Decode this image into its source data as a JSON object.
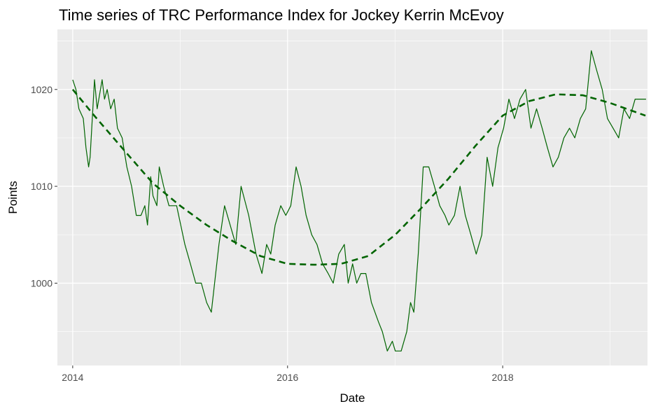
{
  "chart_data": {
    "type": "line",
    "title": "Time series of TRC Performance Index for Jockey Kerrin McEvoy",
    "xlabel": "Date",
    "ylabel": "Points",
    "xlim": [
      "2013-11-10",
      "2019-05-08"
    ],
    "ylim": [
      991.5,
      1026.2
    ],
    "x_ticks": [
      {
        "label": "2014",
        "value": "2014-01-01"
      },
      {
        "label": "2016",
        "value": "2016-01-01"
      },
      {
        "label": "2018",
        "value": "2018-01-01"
      }
    ],
    "y_ticks": [
      {
        "label": "1000",
        "value": 1000
      },
      {
        "label": "1010",
        "value": 1010
      },
      {
        "label": "1020",
        "value": 1020
      }
    ],
    "grid": true,
    "colors": {
      "panel": "#ebebeb",
      "grid": "#ffffff",
      "line": "#006400",
      "trend": "#006400"
    },
    "series": [
      {
        "style": "solid",
        "points": [
          [
            "2014-01-01",
            1021
          ],
          [
            "2014-01-12",
            1020
          ],
          [
            "2014-01-22",
            1018
          ],
          [
            "2014-02-06",
            1017
          ],
          [
            "2014-02-15",
            1014
          ],
          [
            "2014-02-24",
            1012
          ],
          [
            "2014-03-01",
            1013
          ],
          [
            "2014-03-16",
            1021
          ],
          [
            "2014-03-25",
            1018
          ],
          [
            "2014-04-11",
            1021
          ],
          [
            "2014-04-19",
            1019
          ],
          [
            "2014-04-28",
            1020
          ],
          [
            "2014-05-10",
            1018
          ],
          [
            "2014-05-22",
            1019
          ],
          [
            "2014-06-02",
            1016
          ],
          [
            "2014-06-18",
            1015
          ],
          [
            "2014-07-04",
            1012
          ],
          [
            "2014-07-20",
            1010
          ],
          [
            "2014-08-05",
            1007
          ],
          [
            "2014-08-21",
            1007
          ],
          [
            "2014-09-03",
            1008
          ],
          [
            "2014-09-12",
            1006
          ],
          [
            "2014-09-23",
            1011
          ],
          [
            "2014-10-01",
            1009
          ],
          [
            "2014-10-14",
            1008
          ],
          [
            "2014-10-22",
            1012
          ],
          [
            "2014-11-06",
            1010
          ],
          [
            "2014-11-24",
            1008
          ],
          [
            "2014-12-20",
            1008
          ],
          [
            "2015-01-17",
            1004
          ],
          [
            "2015-02-05",
            1002
          ],
          [
            "2015-02-23",
            1000
          ],
          [
            "2015-03-14",
            1000
          ],
          [
            "2015-04-01",
            998
          ],
          [
            "2015-04-17",
            997
          ],
          [
            "2015-05-13",
            1004
          ],
          [
            "2015-06-01",
            1008
          ],
          [
            "2015-06-20",
            1006
          ],
          [
            "2015-07-09",
            1004
          ],
          [
            "2015-07-27",
            1010
          ],
          [
            "2015-08-22",
            1007
          ],
          [
            "2015-09-16",
            1003
          ],
          [
            "2015-10-06",
            1001
          ],
          [
            "2015-10-22",
            1004
          ],
          [
            "2015-11-05",
            1003
          ],
          [
            "2015-11-20",
            1006
          ],
          [
            "2015-12-09",
            1008
          ],
          [
            "2015-12-26",
            1007
          ],
          [
            "2016-01-12",
            1008
          ],
          [
            "2016-01-30",
            1012
          ],
          [
            "2016-02-16",
            1010
          ],
          [
            "2016-03-04",
            1007
          ],
          [
            "2016-03-23",
            1005
          ],
          [
            "2016-04-10",
            1004
          ],
          [
            "2016-04-29",
            1002
          ],
          [
            "2016-05-18",
            1001
          ],
          [
            "2016-06-04",
            1000
          ],
          [
            "2016-06-23",
            1003
          ],
          [
            "2016-07-12",
            1004
          ],
          [
            "2016-07-25",
            1000
          ],
          [
            "2016-08-09",
            1002
          ],
          [
            "2016-08-23",
            1000
          ],
          [
            "2016-09-06",
            1001
          ],
          [
            "2016-09-23",
            1001
          ],
          [
            "2016-10-12",
            998
          ],
          [
            "2016-11-05",
            996
          ],
          [
            "2016-11-18",
            995
          ],
          [
            "2016-12-05",
            993
          ],
          [
            "2016-12-22",
            994
          ],
          [
            "2017-01-01",
            993
          ],
          [
            "2017-01-21",
            993
          ],
          [
            "2017-02-09",
            995
          ],
          [
            "2017-02-22",
            998
          ],
          [
            "2017-03-05",
            997
          ],
          [
            "2017-03-20",
            1003
          ],
          [
            "2017-04-06",
            1012
          ],
          [
            "2017-04-25",
            1012
          ],
          [
            "2017-05-14",
            1010
          ],
          [
            "2017-06-01",
            1008
          ],
          [
            "2017-06-19",
            1007
          ],
          [
            "2017-07-02",
            1006
          ],
          [
            "2017-07-21",
            1007
          ],
          [
            "2017-08-09",
            1010
          ],
          [
            "2017-08-27",
            1007
          ],
          [
            "2017-09-15",
            1005
          ],
          [
            "2017-10-03",
            1003
          ],
          [
            "2017-10-22",
            1005
          ],
          [
            "2017-11-09",
            1013
          ],
          [
            "2017-11-28",
            1010
          ],
          [
            "2017-12-16",
            1014
          ],
          [
            "2018-01-04",
            1016
          ],
          [
            "2018-01-22",
            1019
          ],
          [
            "2018-02-10",
            1017
          ],
          [
            "2018-03-01",
            1019
          ],
          [
            "2018-03-20",
            1020
          ],
          [
            "2018-04-07",
            1016
          ],
          [
            "2018-04-26",
            1018
          ],
          [
            "2018-05-15",
            1016
          ],
          [
            "2018-06-02",
            1014
          ],
          [
            "2018-06-21",
            1012
          ],
          [
            "2018-07-09",
            1013
          ],
          [
            "2018-07-28",
            1015
          ],
          [
            "2018-08-16",
            1016
          ],
          [
            "2018-09-03",
            1015
          ],
          [
            "2018-09-22",
            1017
          ],
          [
            "2018-10-10",
            1018
          ],
          [
            "2018-10-29",
            1024
          ],
          [
            "2018-11-16",
            1022
          ],
          [
            "2018-12-05",
            1020
          ],
          [
            "2018-12-23",
            1017
          ],
          [
            "2019-01-11",
            1016
          ],
          [
            "2019-01-30",
            1015
          ],
          [
            "2019-02-17",
            1018
          ],
          [
            "2019-03-08",
            1017
          ],
          [
            "2019-03-27",
            1019
          ],
          [
            "2019-04-14",
            1019
          ],
          [
            "2019-05-03",
            1019
          ]
        ]
      },
      {
        "style": "dashed",
        "points": [
          [
            "2014-01-01",
            1020
          ],
          [
            "2014-03-15",
            1017.3
          ],
          [
            "2014-07-01",
            1013.5
          ],
          [
            "2014-10-01",
            1010.3
          ],
          [
            "2015-01-01",
            1008
          ],
          [
            "2015-04-01",
            1006
          ],
          [
            "2015-07-01",
            1004.3
          ],
          [
            "2015-10-01",
            1002.8
          ],
          [
            "2016-01-01",
            1002
          ],
          [
            "2016-04-01",
            1001.9
          ],
          [
            "2016-07-01",
            1002
          ],
          [
            "2016-10-01",
            1002.8
          ],
          [
            "2017-01-01",
            1005
          ],
          [
            "2017-04-01",
            1007.8
          ],
          [
            "2017-07-01",
            1010.8
          ],
          [
            "2017-10-01",
            1014.2
          ],
          [
            "2018-01-01",
            1017.3
          ],
          [
            "2018-04-01",
            1018.8
          ],
          [
            "2018-07-01",
            1019.5
          ],
          [
            "2018-10-01",
            1019.4
          ],
          [
            "2019-01-01",
            1018.6
          ],
          [
            "2019-05-01",
            1017.3
          ]
        ]
      }
    ]
  }
}
